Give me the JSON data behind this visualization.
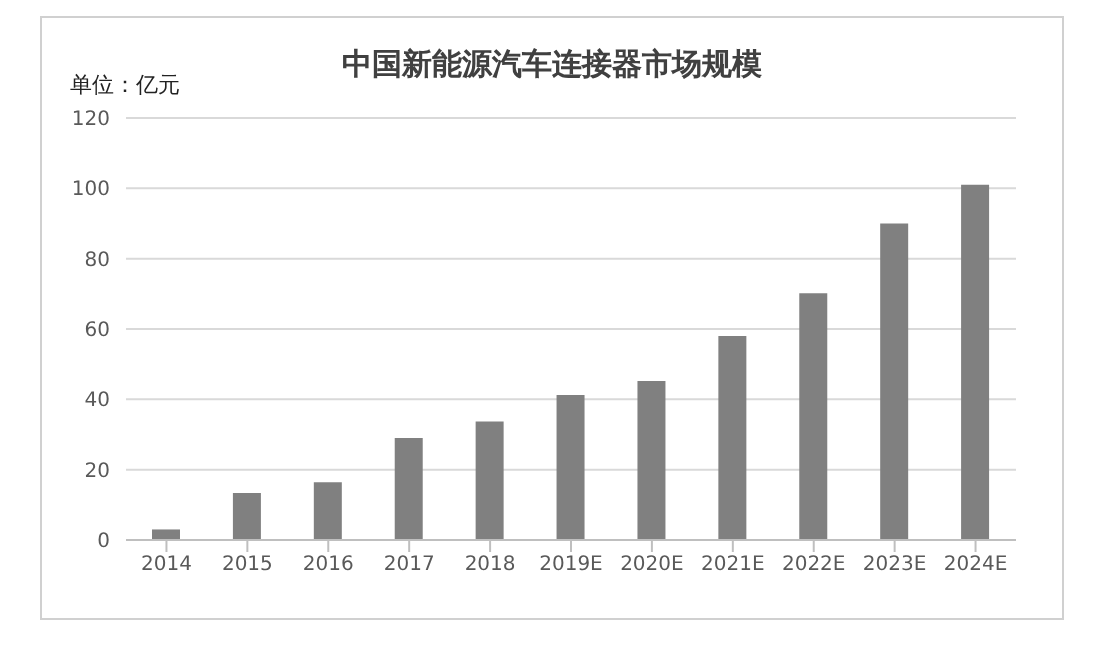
{
  "chart_data": {
    "type": "bar",
    "title": "中国新能源汽车连接器市场规模",
    "ylabel": "单位：亿元",
    "categories": [
      "2014",
      "2015",
      "2016",
      "2017",
      "2018",
      "2019E",
      "2020E",
      "2021E",
      "2022E",
      "2023E",
      "2024E"
    ],
    "values": [
      3,
      13.4,
      16.4,
      29,
      33.7,
      41.2,
      45.2,
      58,
      70.2,
      90,
      101
    ],
    "color": "#808080",
    "ylim": [
      0,
      120
    ],
    "yticks": [
      0,
      20,
      40,
      60,
      80,
      100,
      120
    ],
    "grid": "y"
  }
}
